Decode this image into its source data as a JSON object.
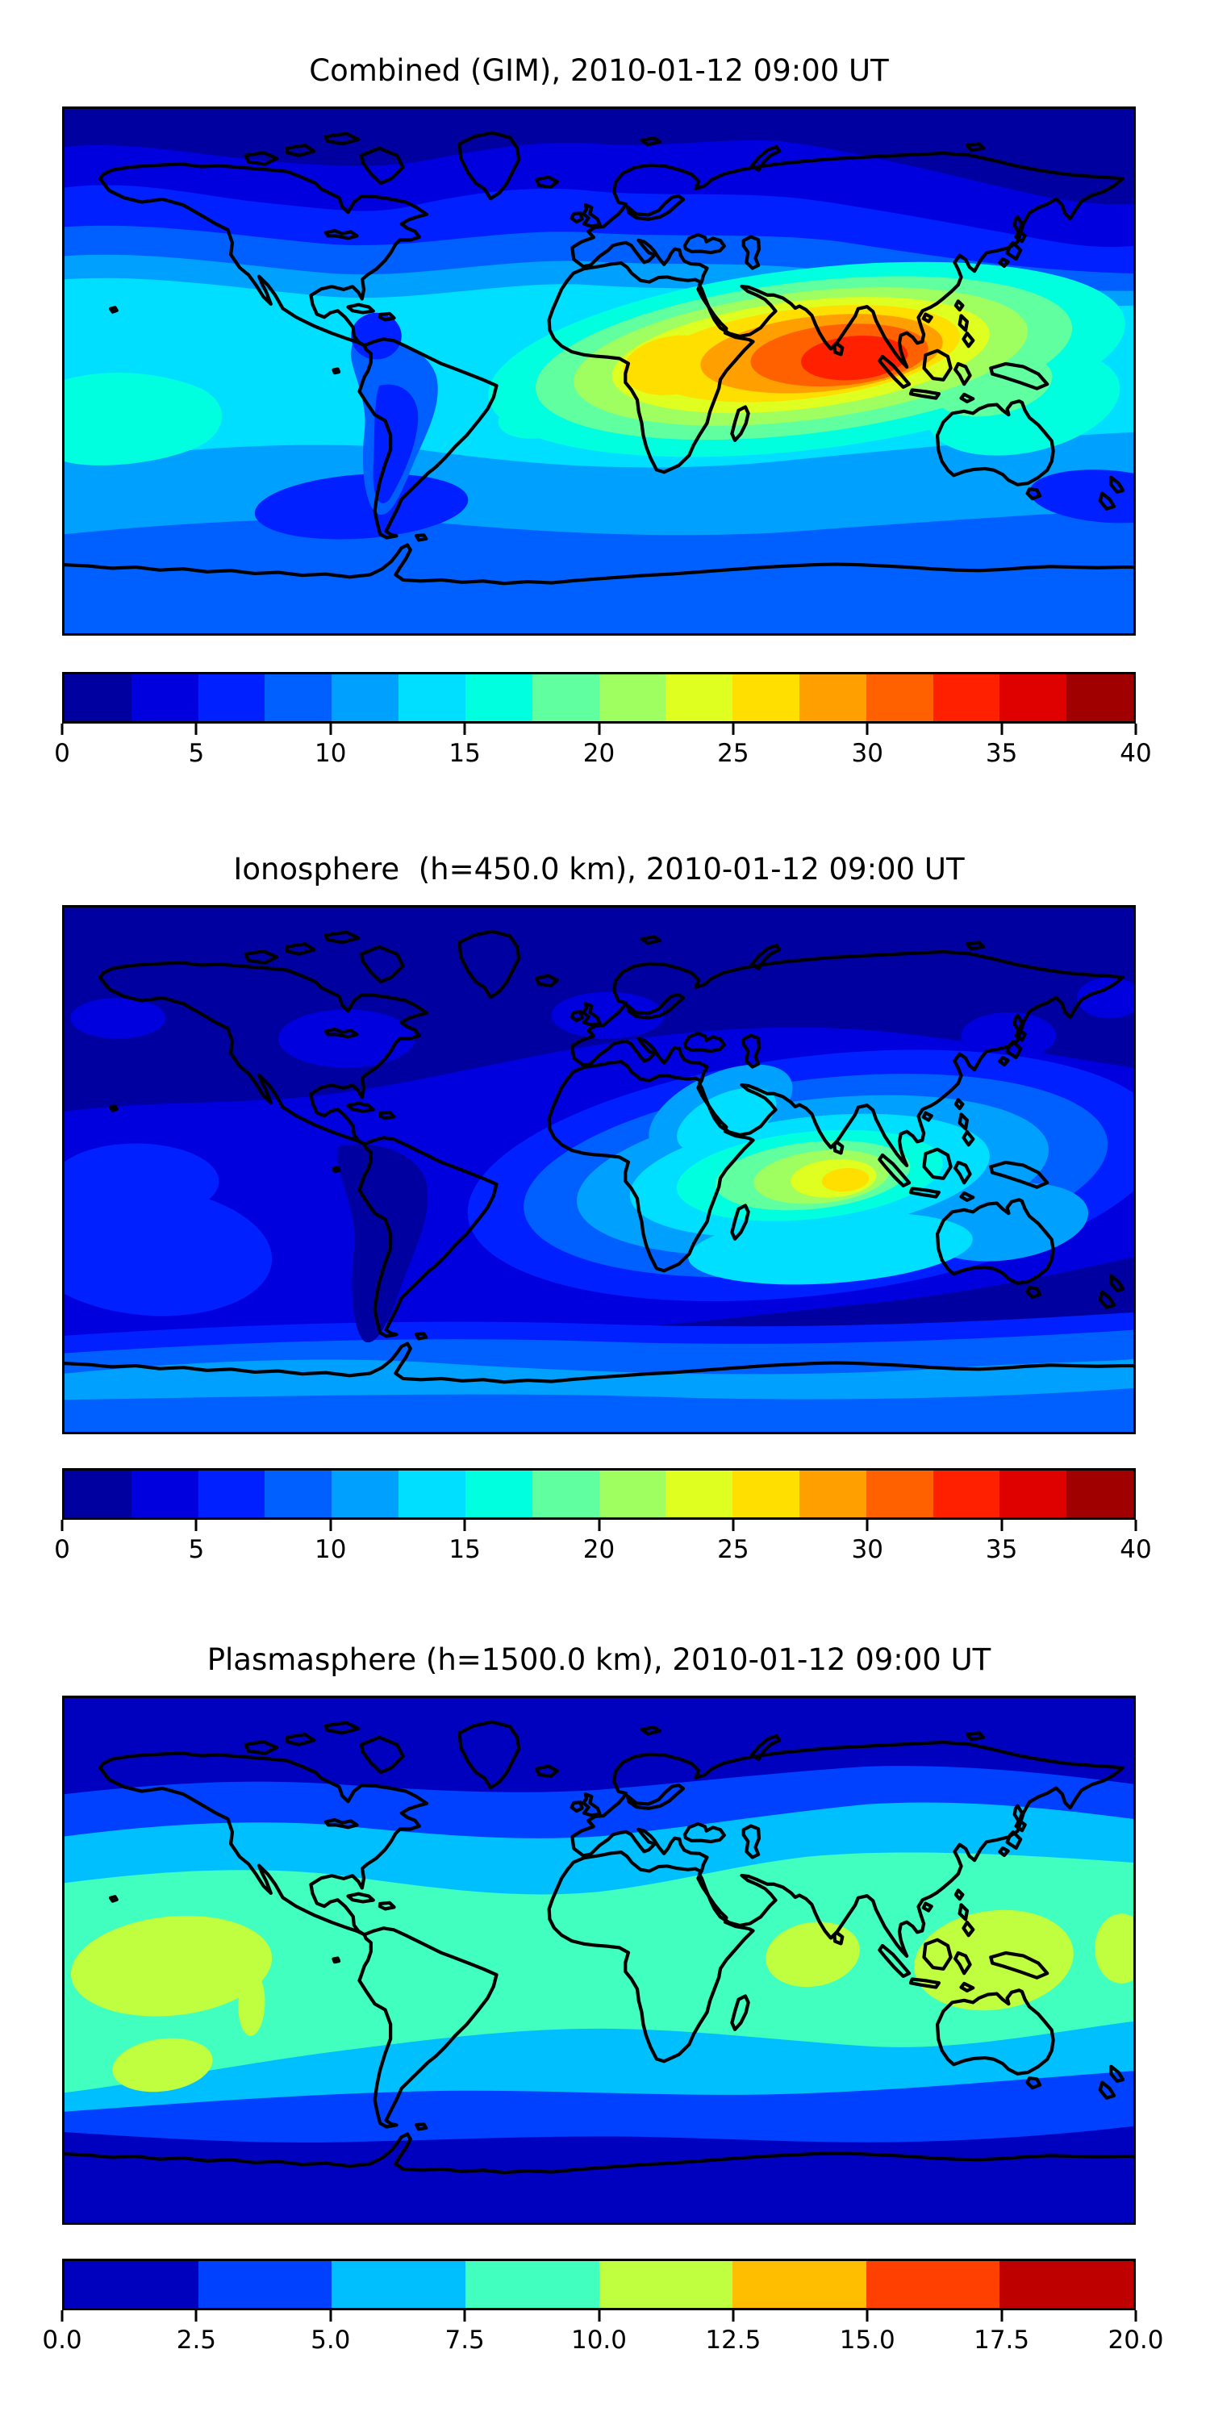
{
  "figure": {
    "kind": "matplotlib-style figure with three global contour maps and horizontal colorbars",
    "background": "#ffffff",
    "coastline_color": "#000000"
  },
  "panels": [
    {
      "id": "combined-gim",
      "title": "Combined (GIM), 2010-01-12 09:00 UT",
      "colorbar": {
        "vmin": 0,
        "vmax": 40,
        "levels": 16,
        "ticks": [
          "0",
          "5",
          "10",
          "15",
          "20",
          "25",
          "30",
          "35",
          "40"
        ],
        "palette": [
          "#0000A0",
          "#0000DF",
          "#0020FF",
          "#0060FF",
          "#00A0FF",
          "#00DFFF",
          "#00FFDF",
          "#60FFA0",
          "#9FFF60",
          "#DFFF20",
          "#FFDF00",
          "#FFA000",
          "#FF6000",
          "#FF2000",
          "#DF0000",
          "#A00000"
        ]
      }
    },
    {
      "id": "ionosphere",
      "title": "Ionosphere  (h=450.0 km), 2010-01-12 09:00 UT",
      "colorbar": {
        "vmin": 0,
        "vmax": 40,
        "levels": 16,
        "ticks": [
          "0",
          "5",
          "10",
          "15",
          "20",
          "25",
          "30",
          "35",
          "40"
        ],
        "palette": [
          "#0000A0",
          "#0000DF",
          "#0020FF",
          "#0060FF",
          "#00A0FF",
          "#00DFFF",
          "#00FFDF",
          "#60FFA0",
          "#9FFF60",
          "#DFFF20",
          "#FFDF00",
          "#FFA000",
          "#FF6000",
          "#FF2000",
          "#DF0000",
          "#A00000"
        ]
      }
    },
    {
      "id": "plasmasphere",
      "title": "Plasmasphere (h=1500.0 km), 2010-01-12 09:00 UT",
      "colorbar": {
        "vmin": 0,
        "vmax": 20,
        "levels": 8,
        "ticks": [
          "0.0",
          "2.5",
          "5.0",
          "7.5",
          "10.0",
          "12.5",
          "15.0",
          "17.5",
          "20.0"
        ],
        "palette": [
          "#0000BF",
          "#0040FF",
          "#00BFFF",
          "#40FFBF",
          "#BFFF40",
          "#FFBF00",
          "#FF4000",
          "#BF0000"
        ]
      }
    }
  ],
  "chart_data": [
    {
      "type": "heatmap",
      "subtype": "filled-contour world map, equirectangular projection",
      "title": "Combined (GIM), 2010-01-12 09:00 UT",
      "x_range_lon": [
        -180,
        180
      ],
      "y_range_lat": [
        -90,
        90
      ],
      "value_range": [
        0,
        40
      ],
      "contour_step": 2.5,
      "colorbar_ticks": [
        0,
        5,
        10,
        15,
        20,
        25,
        30,
        35,
        40
      ],
      "legend_position": "horizontal colorbar below map",
      "features": [
        {
          "region": "equatorial crest from central Africa to Southeast Asia (lon 10E-130E, lat -15 to 25)",
          "approx_value": "25-37"
        },
        {
          "region": "peak over India / Bay of Bengal (lon ~75-95E, lat ~0-15N)",
          "approx_value": "35-37.5"
        },
        {
          "region": "secondary yellow lobe over central Africa (lon ~20-40E)",
          "approx_value": "25-30"
        },
        {
          "region": "high northern latitudes (Canada, Siberia, N Atlantic)",
          "approx_value": "0-7.5"
        },
        {
          "region": "northern mid-latitudes (USA, Europe)",
          "approx_value": "7.5-12.5"
        },
        {
          "region": "equatorial Pacific and Atlantic",
          "approx_value": "12.5-17.5"
        },
        {
          "region": "dark blue cells over South America and S Atlantic (lat -20 to -45)",
          "approx_value": "7.5-10"
        },
        {
          "region": "southern ocean / Antarctica",
          "approx_value": "7.5-12.5"
        }
      ]
    },
    {
      "type": "heatmap",
      "subtype": "filled-contour world map, equirectangular projection",
      "title": "Ionosphere  (h=450.0 km), 2010-01-12 09:00 UT",
      "x_range_lon": [
        -180,
        180
      ],
      "y_range_lat": [
        -90,
        90
      ],
      "value_range": [
        0,
        40
      ],
      "contour_step": 2.5,
      "colorbar_ticks": [
        0,
        5,
        10,
        15,
        20,
        25,
        30,
        35,
        40
      ],
      "legend_position": "horizontal colorbar below map",
      "features": [
        {
          "region": "crest over NE Africa, Arabia, India to Indonesia (lon 20E-120E, lat -15 to 25)",
          "approx_value": "12.5-27.5"
        },
        {
          "region": "yellow peak over equatorial Indian Ocean (lon ~85-95E, lat ~0-5S)",
          "approx_value": "25-27.5"
        },
        {
          "region": "entire night side: Americas and high northern latitudes",
          "approx_value": "0-5"
        },
        {
          "region": "dark minimum over South America extending south",
          "approx_value": "0-2.5"
        },
        {
          "region": "southern mid-latitude band",
          "approx_value": "5-12.5"
        },
        {
          "region": "band near Antarctic coast",
          "approx_value": "7.5-12.5"
        }
      ]
    },
    {
      "type": "heatmap",
      "subtype": "filled-contour world map, equirectangular projection",
      "title": "Plasmasphere (h=1500.0 km), 2010-01-12 09:00 UT",
      "x_range_lon": [
        -180,
        180
      ],
      "y_range_lat": [
        -90,
        90
      ],
      "value_range": [
        0,
        20
      ],
      "contour_step": 2.5,
      "colorbar_ticks": [
        0.0,
        2.5,
        5.0,
        7.5,
        10.0,
        12.5,
        15.0,
        17.5,
        20.0
      ],
      "legend_position": "horizontal colorbar below map",
      "features": [
        {
          "region": "polar caps north and south (|lat| > 55)",
          "approx_value": "0-2.5"
        },
        {
          "region": "blue transition bands (|lat| ~ 40-55)",
          "approx_value": "2.5-5"
        },
        {
          "region": "cyan bands (|lat| ~ 30-45)",
          "approx_value": "5-7.5"
        },
        {
          "region": "broad spring-green low-latitude belt (lat -40 to 30)",
          "approx_value": "7.5-10"
        },
        {
          "region": "yellow-green maxima: central Pacific, south of India, SE Asia / W Pacific",
          "approx_value": "10-12.5"
        }
      ]
    }
  ]
}
